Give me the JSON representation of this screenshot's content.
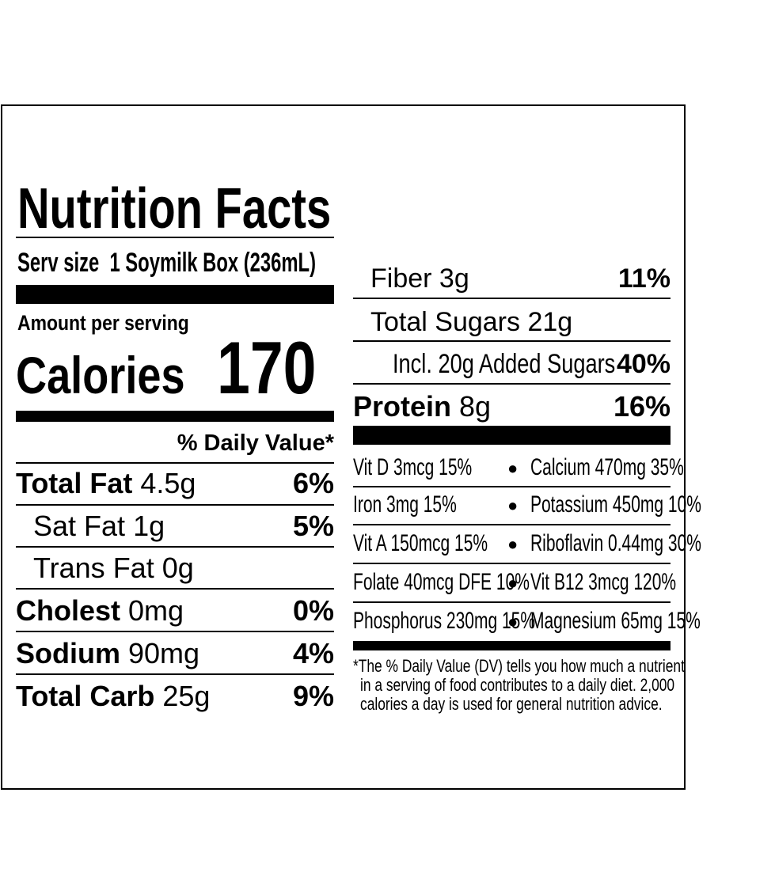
{
  "title": "Nutrition Facts",
  "serving": {
    "label": "Serv size",
    "value": "1 Soymilk Box (236mL)"
  },
  "amount_per_serving": "Amount per serving",
  "calories": {
    "label": "Calories",
    "value": "170"
  },
  "daily_value_header": "% Daily Value*",
  "left_rows": [
    {
      "name": "Total Fat",
      "amount": "4.5g",
      "dv": "6%"
    },
    {
      "name": "Sat Fat",
      "amount": "1g",
      "dv": "5%"
    },
    {
      "name": "Trans Fat",
      "amount": "0g",
      "dv": ""
    },
    {
      "name": "Cholest",
      "amount": "0mg",
      "dv": "0%"
    },
    {
      "name": "Sodium",
      "amount": "90mg",
      "dv": "4%"
    },
    {
      "name": "Total Carb",
      "amount": "25g",
      "dv": "9%"
    }
  ],
  "right_rows": [
    {
      "name": "Fiber",
      "amount": "3g",
      "dv": "11%"
    },
    {
      "name": "Total Sugars",
      "amount": "21g",
      "dv": ""
    },
    {
      "name": "Incl. 20g Added Sugars",
      "amount": "",
      "dv": "40%"
    },
    {
      "name": "Protein",
      "amount": "8g",
      "dv": "16%"
    }
  ],
  "vitamins": [
    {
      "left": "Vit D 3mcg 15%",
      "right": "Calcium 470mg 35%"
    },
    {
      "left": "Iron 3mg 15%",
      "right": "Potassium 450mg 10%"
    },
    {
      "left": "Vit A 150mcg 15%",
      "right": "Riboflavin 0.44mg 30%"
    },
    {
      "left": "Folate 40mcg DFE 10%",
      "right": "Vit B12 3mcg 120%"
    },
    {
      "left": "Phosphorus 230mg 15%",
      "right": "Magnesium 65mg 15%"
    }
  ],
  "bullet": "●",
  "footnote": [
    "*The % Daily Value (DV) tells you how much a nutrient",
    "in a serving of food contributes to a daily diet. 2,000",
    "calories a day is used for general nutrition advice."
  ]
}
